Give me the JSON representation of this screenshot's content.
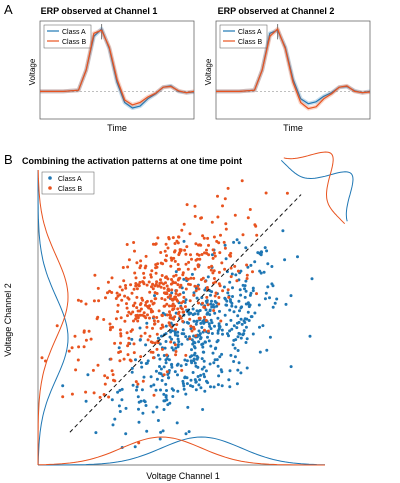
{
  "panel_a": {
    "label": "A",
    "colors": {
      "class_a": "#1f77b4",
      "class_b": "#e8531f",
      "baseline": "#999999"
    },
    "charts": [
      {
        "title": "ERP observed at Channel 1",
        "xlabel": "Time",
        "ylabel": "Voltage",
        "legend": [
          "Class A",
          "Class B"
        ],
        "legend_position": "top-left"
      },
      {
        "title": "ERP observed at Channel 2",
        "xlabel": "Time",
        "ylabel": "Voltage",
        "legend": [
          "Class A",
          "Class B"
        ],
        "legend_position": "top-left"
      }
    ]
  },
  "panel_b": {
    "label": "B",
    "title": "Combining the activation patterns at one time point",
    "xlabel": "Voltage Channel 1",
    "ylabel": "Voltage Channel 2",
    "legend": [
      "Class A",
      "Class B"
    ],
    "legend_position": "top-left"
  },
  "chart_data": [
    {
      "type": "line",
      "title": "ERP observed at Channel 1",
      "xlabel": "Time",
      "ylabel": "Voltage",
      "x": [
        0,
        5,
        10,
        15,
        20,
        25,
        30,
        35,
        40,
        45,
        50,
        55,
        60,
        65,
        70,
        75,
        80,
        85,
        90,
        95,
        100
      ],
      "series": [
        {
          "name": "Class A",
          "values": [
            0,
            0,
            0,
            0,
            0.01,
            0.02,
            0.35,
            0.9,
            1.02,
            0.7,
            0.15,
            -0.18,
            -0.27,
            -0.24,
            -0.12,
            -0.04,
            0.07,
            0.09,
            0.0,
            -0.02,
            -0.01
          ]
        },
        {
          "name": "Class B",
          "values": [
            0,
            0,
            0,
            0,
            0.01,
            0.02,
            0.35,
            0.95,
            1.0,
            0.72,
            0.2,
            -0.14,
            -0.22,
            -0.18,
            -0.09,
            -0.03,
            0.07,
            0.08,
            0.01,
            -0.02,
            0
          ]
        }
      ],
      "grid": false,
      "legend": "top-left"
    },
    {
      "type": "line",
      "title": "ERP observed at Channel 2",
      "xlabel": "Time",
      "ylabel": "Voltage",
      "x": [
        0,
        5,
        10,
        15,
        20,
        25,
        30,
        35,
        40,
        45,
        50,
        55,
        60,
        65,
        70,
        75,
        80,
        85,
        90,
        95,
        100
      ],
      "series": [
        {
          "name": "Class A",
          "values": [
            0,
            0,
            0,
            0,
            0.01,
            0.02,
            0.35,
            0.95,
            1.0,
            0.72,
            0.2,
            -0.12,
            -0.2,
            -0.17,
            -0.08,
            -0.02,
            0.07,
            0.08,
            0.01,
            -0.02,
            0
          ]
        },
        {
          "name": "Class B",
          "values": [
            0,
            0,
            0,
            0,
            0.01,
            0.02,
            0.35,
            0.9,
            1.02,
            0.7,
            0.15,
            -0.18,
            -0.28,
            -0.25,
            -0.12,
            -0.04,
            0.07,
            0.09,
            0.0,
            -0.02,
            -0.01
          ]
        }
      ],
      "grid": false,
      "legend": "top-left"
    },
    {
      "type": "scatter",
      "title": "Combining the activation patterns at one time point",
      "xlabel": "Voltage Channel 1",
      "ylabel": "Voltage Channel 2",
      "series": [
        {
          "name": "Class A",
          "n_points": 500,
          "mean": [
            0.5,
            -0.5
          ],
          "sd": [
            1.0,
            1.0
          ],
          "correlation": 0.6
        },
        {
          "name": "Class B",
          "n_points": 500,
          "mean": [
            -0.5,
            0.5
          ],
          "sd": [
            1.0,
            1.0
          ],
          "correlation": 0.6
        }
      ],
      "xlim": [
        -3.6,
        3.6
      ],
      "ylim": [
        -3.6,
        3.6
      ],
      "decision_boundary": "y = x (dashed)",
      "marginals": [
        "x",
        "y",
        "diagonal projection"
      ],
      "grid": false,
      "legend": "top-left"
    }
  ]
}
